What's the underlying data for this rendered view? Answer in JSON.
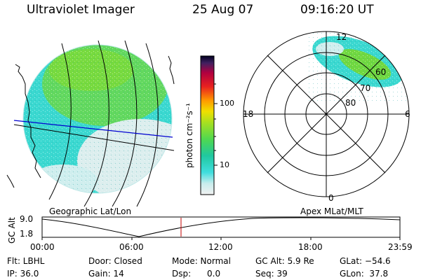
{
  "header": {
    "instrument": "Ultraviolet Imager",
    "date": "25 Aug 07",
    "time": "09:16:20 UT"
  },
  "geo_panel": {
    "label": "Geographic Lat/Lon"
  },
  "color_bar": {
    "unit_label": "photon cm⁻²s⁻¹",
    "ticks": [
      "100",
      "10"
    ]
  },
  "polar_panel": {
    "label": "Apex MLat/MLT",
    "mlt_labels": [
      "12",
      "18",
      "6",
      "0"
    ],
    "lat_labels": [
      "60",
      "70",
      "80"
    ]
  },
  "altitude_plot": {
    "axis_label": "GC Alt",
    "y_ticks": [
      "9.0",
      "1.8"
    ],
    "x_ticks": [
      "00:00",
      "06:00",
      "12:00",
      "18:00",
      "23:59"
    ],
    "marker_color": "#c00000"
  },
  "info": {
    "filt": "Flt: LBHL",
    "door": "Door: Closed",
    "mode": "Mode: Normal",
    "gc_alt": "GC Alt: 5.9 Re",
    "glat": "GLat: −54.6",
    "ip": "IP: 36.0",
    "gain": "Gain: 14",
    "dsp": "Dsp:      0.0",
    "seq": "Seq: 39",
    "glon": "GLon:  37.8"
  }
}
